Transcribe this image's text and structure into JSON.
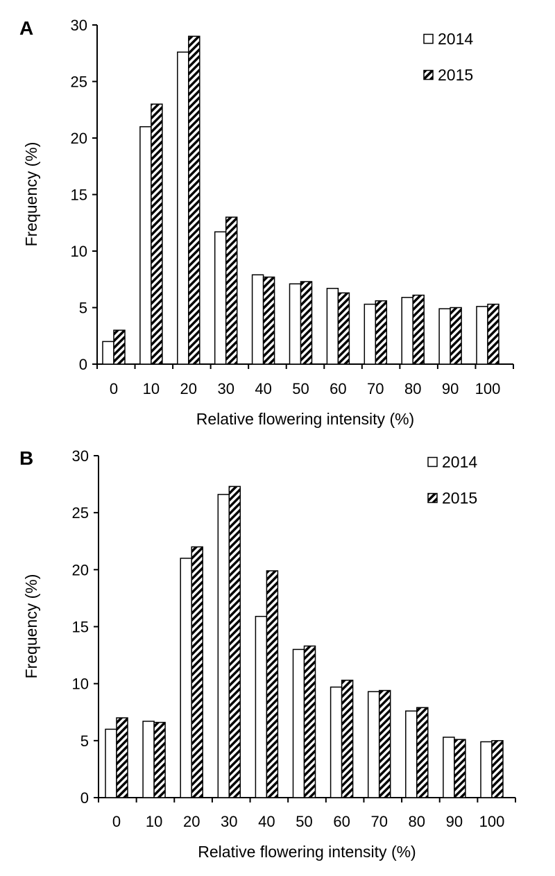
{
  "chart_data": [
    {
      "panel_label": "A",
      "type": "bar",
      "categories": [
        "0",
        "10",
        "20",
        "30",
        "40",
        "50",
        "60",
        "70",
        "80",
        "90",
        "100"
      ],
      "series": [
        {
          "name": "2014",
          "values": [
            2.0,
            21.0,
            27.6,
            11.7,
            7.9,
            7.1,
            6.7,
            5.3,
            5.9,
            4.9,
            5.1
          ],
          "fill": "open"
        },
        {
          "name": "2015",
          "values": [
            3.0,
            23.0,
            29.0,
            13.0,
            7.7,
            7.3,
            6.3,
            5.6,
            6.1,
            5.0,
            5.3
          ],
          "fill": "hatched"
        }
      ],
      "xlabel": "Relative flowering intensity (%)",
      "ylabel": "Frequency (%)",
      "ylim": [
        0,
        30
      ],
      "yticks": [
        "0",
        "5",
        "10",
        "15",
        "20",
        "25",
        "30"
      ],
      "grid": false,
      "legend_position": "top-right"
    },
    {
      "panel_label": "B",
      "type": "bar",
      "categories": [
        "0",
        "10",
        "20",
        "30",
        "40",
        "50",
        "60",
        "70",
        "80",
        "90",
        "100"
      ],
      "series": [
        {
          "name": "2014",
          "values": [
            6.0,
            6.7,
            21.0,
            26.6,
            15.9,
            13.0,
            9.7,
            9.3,
            7.6,
            5.3,
            4.9
          ],
          "fill": "open"
        },
        {
          "name": "2015",
          "values": [
            7.0,
            6.6,
            22.0,
            27.3,
            19.9,
            13.3,
            10.3,
            9.4,
            7.9,
            5.1,
            5.0
          ],
          "fill": "hatched"
        }
      ],
      "xlabel": "Relative flowering intensity (%)",
      "ylabel": "Frequency (%)",
      "ylim": [
        0,
        30
      ],
      "yticks": [
        "0",
        "5",
        "10",
        "15",
        "20",
        "25",
        "30"
      ],
      "grid": false,
      "legend_position": "top-right"
    }
  ],
  "colors": {
    "axis": "#000000",
    "bar_stroke": "#000000",
    "open_fill": "#ffffff",
    "hatch": "#000000"
  }
}
